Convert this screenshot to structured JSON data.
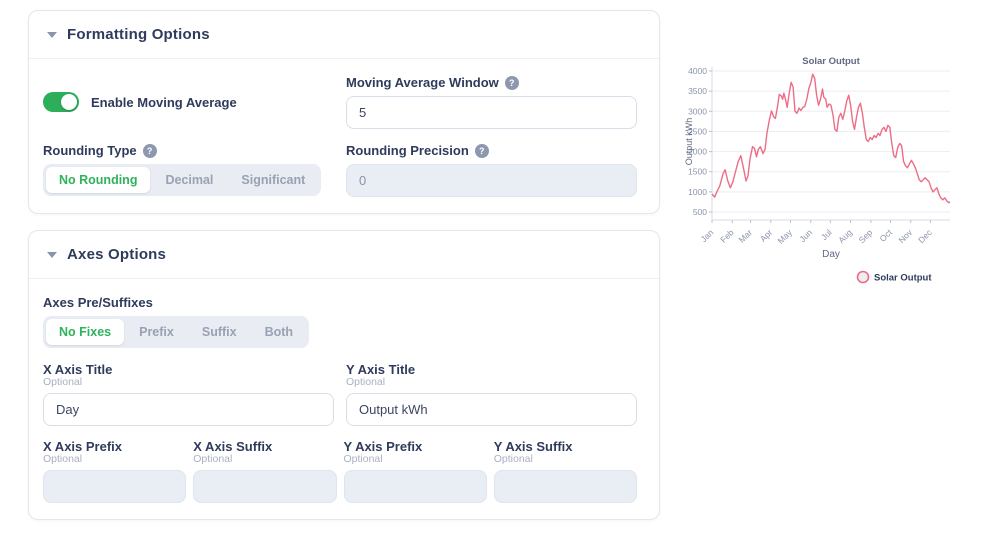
{
  "colors": {
    "accent_green": "#2dae5a",
    "navy_text": "#2f3b5c",
    "line_pink": "#ed6d86",
    "muted_slate": "#8b94ab"
  },
  "formatting_card": {
    "title": "Formatting Options",
    "toggle": {
      "label": "Enable Moving Average",
      "state": "on"
    },
    "moving_average_window": {
      "label": "Moving Average Window",
      "help": "?",
      "value": "5"
    },
    "rounding_type": {
      "label": "Rounding Type",
      "help": "?",
      "options": [
        "No Rounding",
        "Decimal",
        "Significant"
      ],
      "selected": "No Rounding"
    },
    "rounding_precision": {
      "label": "Rounding Precision",
      "help": "?",
      "value": "0"
    }
  },
  "axes_card": {
    "title": "Axes Options",
    "pre_suffixes": {
      "label": "Axes Pre/Suffixes",
      "options": [
        "No Fixes",
        "Prefix",
        "Suffix",
        "Both"
      ],
      "selected": "No Fixes"
    },
    "x_axis_title": {
      "label": "X Axis Title",
      "sublabel": "Optional",
      "value": "Day"
    },
    "y_axis_title": {
      "label": "Y Axis Title",
      "sublabel": "Optional",
      "value": "Output kWh"
    },
    "x_axis_prefix": {
      "label": "X Axis Prefix",
      "sublabel": "Optional",
      "value": ""
    },
    "x_axis_suffix": {
      "label": "X Axis Suffix",
      "sublabel": "Optional",
      "value": ""
    },
    "y_axis_prefix": {
      "label": "Y Axis Prefix",
      "sublabel": "Optional",
      "value": ""
    },
    "y_axis_suffix": {
      "label": "Y Axis Suffix",
      "sublabel": "Optional",
      "value": ""
    }
  },
  "chart_data": {
    "type": "line",
    "title": "Solar Output",
    "xlabel": "Day",
    "ylabel": "Output kWh",
    "ylim": [
      500,
      4000
    ],
    "yticks": [
      500,
      1000,
      1500,
      2000,
      2500,
      3000,
      3500,
      4000
    ],
    "xlim_days": [
      0,
      364
    ],
    "xticks": [
      {
        "label": "Jan",
        "day": 0
      },
      {
        "label": "Feb",
        "day": 31
      },
      {
        "label": "Mar",
        "day": 59
      },
      {
        "label": "Apr",
        "day": 90
      },
      {
        "label": "May",
        "day": 120
      },
      {
        "label": "Jun",
        "day": 151
      },
      {
        "label": "Jul",
        "day": 181
      },
      {
        "label": "Aug",
        "day": 212
      },
      {
        "label": "Sep",
        "day": 243
      },
      {
        "label": "Oct",
        "day": 273
      },
      {
        "label": "Nov",
        "day": 304
      },
      {
        "label": "Dec",
        "day": 334
      }
    ],
    "grid": true,
    "legend_position": "bottom-right",
    "legend": [
      {
        "label": "Solar Output",
        "color": "#ed6d86"
      }
    ],
    "series": [
      {
        "name": "Solar Output",
        "color": "#ed6d86",
        "points": [
          [
            0,
            950
          ],
          [
            4,
            870
          ],
          [
            8,
            1020
          ],
          [
            12,
            1150
          ],
          [
            17,
            1450
          ],
          [
            20,
            1550
          ],
          [
            24,
            1280
          ],
          [
            28,
            1100
          ],
          [
            32,
            1250
          ],
          [
            36,
            1500
          ],
          [
            40,
            1750
          ],
          [
            44,
            1900
          ],
          [
            48,
            1600
          ],
          [
            52,
            1270
          ],
          [
            55,
            1400
          ],
          [
            58,
            1800
          ],
          [
            62,
            2120
          ],
          [
            65,
            2080
          ],
          [
            68,
            1870
          ],
          [
            71,
            2060
          ],
          [
            74,
            2120
          ],
          [
            78,
            1950
          ],
          [
            81,
            2050
          ],
          [
            84,
            2450
          ],
          [
            88,
            2800
          ],
          [
            91,
            3010
          ],
          [
            94,
            2870
          ],
          [
            97,
            2820
          ],
          [
            100,
            3100
          ],
          [
            103,
            3420
          ],
          [
            106,
            3380
          ],
          [
            108,
            3300
          ],
          [
            110,
            3450
          ],
          [
            113,
            3250
          ],
          [
            115,
            3100
          ],
          [
            118,
            3450
          ],
          [
            121,
            3720
          ],
          [
            124,
            3600
          ],
          [
            127,
            3000
          ],
          [
            130,
            2950
          ],
          [
            133,
            3080
          ],
          [
            136,
            3020
          ],
          [
            139,
            3100
          ],
          [
            142,
            3120
          ],
          [
            145,
            3300
          ],
          [
            148,
            3560
          ],
          [
            151,
            3700
          ],
          [
            154,
            3920
          ],
          [
            157,
            3820
          ],
          [
            160,
            3400
          ],
          [
            163,
            3150
          ],
          [
            166,
            3300
          ],
          [
            169,
            3550
          ],
          [
            171,
            3350
          ],
          [
            174,
            3300
          ],
          [
            176,
            3100
          ],
          [
            179,
            3180
          ],
          [
            182,
            3150
          ],
          [
            185,
            2900
          ],
          [
            188,
            2550
          ],
          [
            191,
            2500
          ],
          [
            194,
            2850
          ],
          [
            197,
            2950
          ],
          [
            200,
            2800
          ],
          [
            203,
            3000
          ],
          [
            206,
            3250
          ],
          [
            209,
            3400
          ],
          [
            212,
            3150
          ],
          [
            215,
            2750
          ],
          [
            218,
            2550
          ],
          [
            221,
            2850
          ],
          [
            224,
            3100
          ],
          [
            227,
            3200
          ],
          [
            230,
            2950
          ],
          [
            233,
            2600
          ],
          [
            236,
            2300
          ],
          [
            239,
            2250
          ],
          [
            242,
            2350
          ],
          [
            245,
            2300
          ],
          [
            248,
            2400
          ],
          [
            251,
            2350
          ],
          [
            254,
            2450
          ],
          [
            257,
            2400
          ],
          [
            260,
            2550
          ],
          [
            263,
            2600
          ],
          [
            266,
            2500
          ],
          [
            269,
            2650
          ],
          [
            272,
            2600
          ],
          [
            275,
            2200
          ],
          [
            278,
            1900
          ],
          [
            281,
            1850
          ],
          [
            284,
            2100
          ],
          [
            287,
            2200
          ],
          [
            290,
            2150
          ],
          [
            293,
            1750
          ],
          [
            296,
            1650
          ],
          [
            299,
            1600
          ],
          [
            302,
            1700
          ],
          [
            305,
            1780
          ],
          [
            308,
            1700
          ],
          [
            311,
            1600
          ],
          [
            314,
            1450
          ],
          [
            317,
            1300
          ],
          [
            320,
            1250
          ],
          [
            323,
            1300
          ],
          [
            326,
            1350
          ],
          [
            329,
            1300
          ],
          [
            332,
            1250
          ],
          [
            335,
            1100
          ],
          [
            338,
            1000
          ],
          [
            341,
            1050
          ],
          [
            344,
            1100
          ],
          [
            347,
            950
          ],
          [
            350,
            850
          ],
          [
            353,
            800
          ],
          [
            356,
            850
          ],
          [
            359,
            780
          ],
          [
            362,
            730
          ],
          [
            364,
            750
          ]
        ]
      }
    ]
  }
}
